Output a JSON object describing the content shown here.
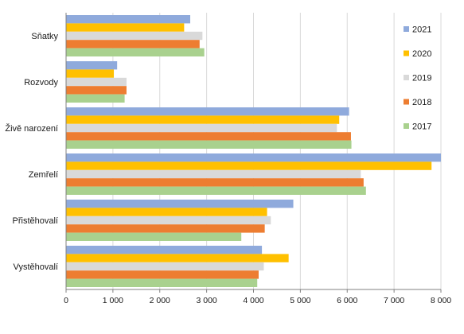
{
  "chart_data": {
    "type": "bar",
    "orientation": "horizontal",
    "categories": [
      "Sňatky",
      "Rozvody",
      "Živě narození",
      "Zemřelí",
      "Přistěhovalí",
      "Vystěhovalí"
    ],
    "series": [
      {
        "name": "2021",
        "color": "#8FAADC",
        "values": [
          2650,
          1090,
          6040,
          8000,
          4850,
          4180
        ]
      },
      {
        "name": "2020",
        "color": "#FFC000",
        "values": [
          2520,
          1020,
          5830,
          7800,
          4290,
          4750
        ]
      },
      {
        "name": "2019",
        "color": "#D9D9D9",
        "values": [
          2910,
          1290,
          5780,
          6290,
          4370,
          4220
        ]
      },
      {
        "name": "2018",
        "color": "#ED7D31",
        "values": [
          2850,
          1290,
          6080,
          6350,
          4240,
          4110
        ]
      },
      {
        "name": "2017",
        "color": "#A9D18E",
        "values": [
          2950,
          1250,
          6090,
          6400,
          3740,
          4080
        ]
      }
    ],
    "xlim": [
      0,
      8000
    ],
    "xticks": [
      0,
      1000,
      2000,
      3000,
      4000,
      5000,
      6000,
      7000,
      8000
    ],
    "xtick_labels": [
      "0",
      "1 000",
      "2 000",
      "3 000",
      "4 000",
      "5 000",
      "6 000",
      "7 000",
      "8 000"
    ],
    "grid": "vertical",
    "legend": "right",
    "legend_order": [
      "2021",
      "2020",
      "2019",
      "2018",
      "2017"
    ]
  }
}
